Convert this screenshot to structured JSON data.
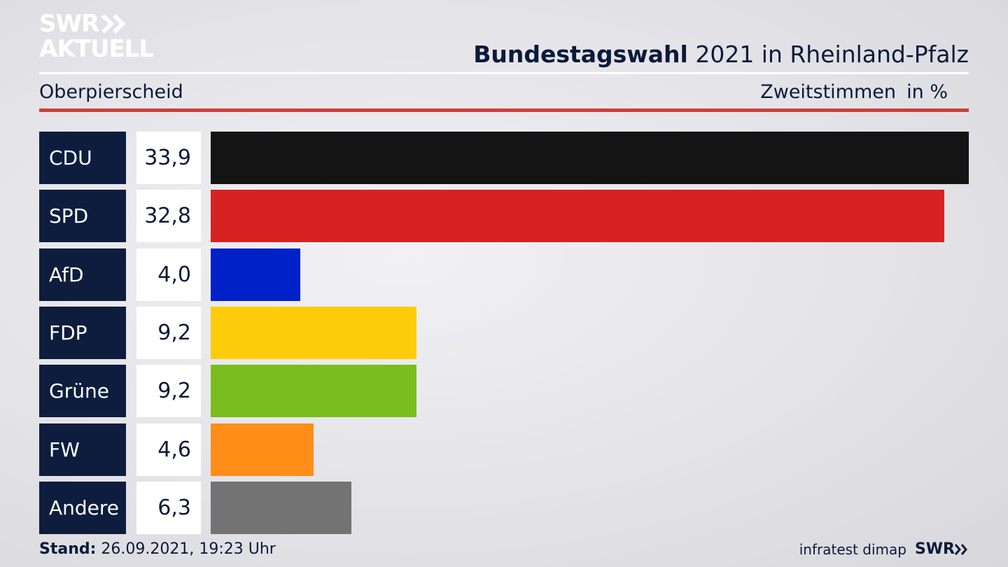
{
  "header": {
    "logo_line1": "SWR",
    "logo_line2": "AKTUELL",
    "title_strong": "Bundestagswahl",
    "title_rest": " 2021 in Rheinland-Pfalz",
    "region": "Oberpierscheid",
    "vote_type": "Zweitstimmen",
    "unit": "in %"
  },
  "footer": {
    "stand_label": "Stand:",
    "stand_value": " 26.09.2021, 19:23 Uhr",
    "source": "infratest dimap",
    "source_logo": "SWR"
  },
  "colors": {
    "CDU": "#141414",
    "SPD": "#d62222",
    "AfD": "#0021c8",
    "FDP": "#ffcc0c",
    "Grüne": "#79be1e",
    "FW": "#ff8e18",
    "Andere": "#737373"
  },
  "chart_data": {
    "type": "bar",
    "orientation": "horizontal",
    "categories": [
      "CDU",
      "SPD",
      "AfD",
      "FDP",
      "Grüne",
      "FW",
      "Andere"
    ],
    "values": [
      33.9,
      32.8,
      4.0,
      9.2,
      9.2,
      4.6,
      6.3
    ],
    "value_labels": [
      "33,9",
      "32,8",
      "4,0",
      "9,2",
      "9,2",
      "4,6",
      "6,3"
    ],
    "title": "Bundestagswahl 2021 in Rheinland-Pfalz",
    "subtitle": "Oberpierscheid",
    "xlabel": "Zweitstimmen",
    "ylabel": "",
    "unit": "in %",
    "xlim": [
      0,
      33.9
    ],
    "grid": false
  }
}
